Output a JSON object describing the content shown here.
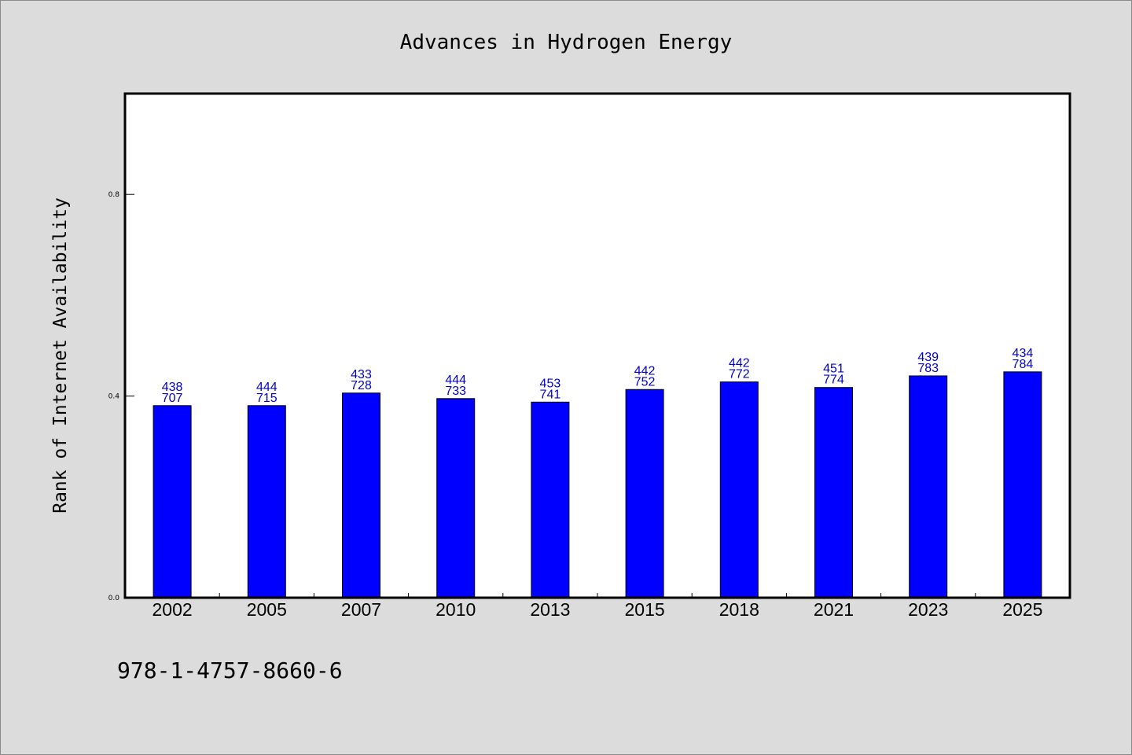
{
  "chart_data": {
    "type": "bar",
    "title": "Advances in Hydrogen Energy",
    "xlabel": "",
    "ylabel": "Rank of Internet Availability",
    "categories": [
      "2002",
      "2005",
      "2007",
      "2010",
      "2013",
      "2015",
      "2018",
      "2021",
      "2023",
      "2025"
    ],
    "values": [
      0.381,
      0.381,
      0.406,
      0.395,
      0.388,
      0.413,
      0.428,
      0.417,
      0.44,
      0.448
    ],
    "labels_top": [
      "438",
      "444",
      "433",
      "444",
      "453",
      "442",
      "442",
      "451",
      "439",
      "434"
    ],
    "labels_bottom": [
      "707",
      "715",
      "728",
      "733",
      "741",
      "752",
      "772",
      "774",
      "783",
      "784"
    ],
    "ylim": [
      0,
      1
    ],
    "yticks": [
      "0.0",
      "0.4",
      "0.8"
    ],
    "ytick_values": [
      0,
      0.4,
      0.8
    ],
    "bar_color": "#0000ff",
    "label_color": "#0000cc",
    "grid": false
  },
  "footer": {
    "isbn": "978-1-4757-8660-6"
  }
}
